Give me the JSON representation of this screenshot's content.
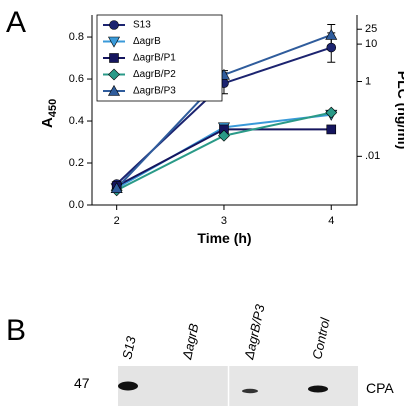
{
  "panel_labels": [
    "A",
    "B"
  ],
  "chart_data": {
    "type": "line",
    "x_label": "Time (h)",
    "y_label": "A",
    "y_label_sub": "450",
    "y2_label": "PLC (ng/ml)",
    "x": [
      2,
      3,
      4
    ],
    "xlim": [
      1.77,
      4.24
    ],
    "xticks": [
      2,
      3,
      4
    ],
    "ylim": [
      0,
      0.905
    ],
    "yticks": [
      {
        "value": 0,
        "label": "0.0"
      },
      0.2,
      0.4,
      0.6,
      0.8
    ],
    "y2lim": [
      0.0005,
      60
    ],
    "y2ticks": [
      {
        "value": 0.01,
        "label": ".01"
      },
      1,
      10,
      25
    ],
    "y2_log": true,
    "legend": "top-left",
    "series": [
      {
        "name": "S13",
        "color": "#1c2470",
        "marker": "circle",
        "values": [
          0.1,
          0.58,
          0.75
        ],
        "errors": [
          null,
          0.05,
          0.07
        ]
      },
      {
        "name": "ΔagrB",
        "color": "#3a9ad9",
        "marker": "triangle-down",
        "values": [
          0.08,
          0.37,
          0.43
        ],
        "errors": [
          null,
          null,
          null
        ]
      },
      {
        "name": "ΔagrB/P1",
        "color": "#15155e",
        "marker": "square",
        "values": [
          0.09,
          0.36,
          0.36
        ],
        "errors": [
          null,
          null,
          null
        ]
      },
      {
        "name": "ΔagrB/P2",
        "color": "#2a9a88",
        "marker": "diamond",
        "values": [
          0.07,
          0.33,
          0.44
        ],
        "errors": [
          null,
          null,
          null
        ]
      },
      {
        "name": "ΔagrB/P3",
        "color": "#2f5c9c",
        "marker": "triangle-up",
        "values": [
          0.08,
          0.62,
          0.81
        ],
        "errors": [
          null,
          0.02,
          0.05
        ]
      }
    ]
  },
  "blot": {
    "lanes": [
      "S13",
      "ΔagrB",
      "ΔagrB/P3",
      "Control"
    ],
    "marker": "47",
    "label": "CPA"
  }
}
